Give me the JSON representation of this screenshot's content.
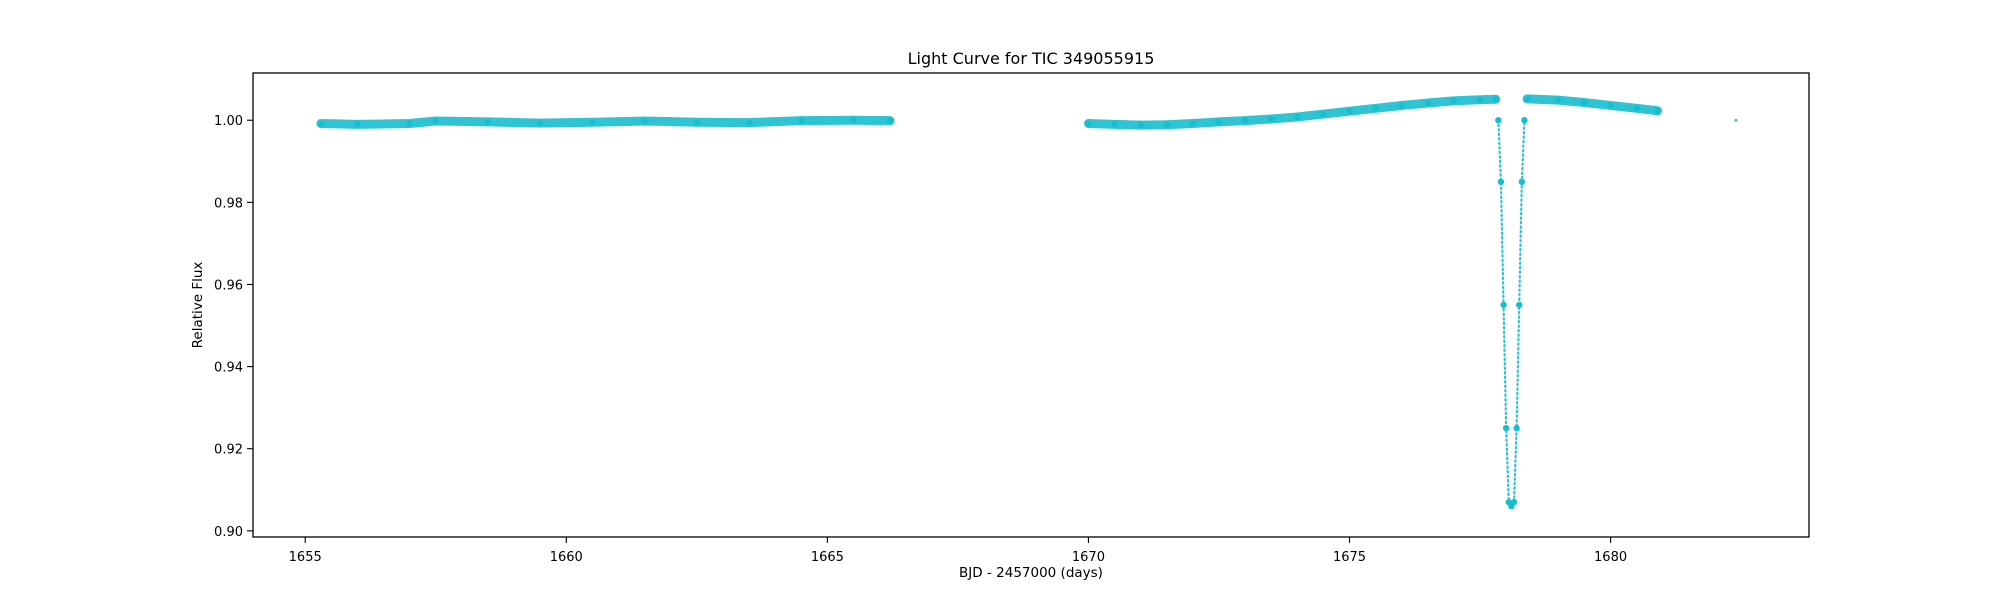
{
  "chart_data": {
    "type": "scatter",
    "title": "Light Curve for TIC 349055915",
    "xlabel": "BJD - 2457000 (days)",
    "ylabel": "Relative Flux",
    "xlim": [
      1654.0,
      1683.8
    ],
    "ylim": [
      0.8985,
      1.0115
    ],
    "x_ticks": [
      1655,
      1660,
      1665,
      1670,
      1675,
      1680
    ],
    "x_tick_labels": [
      "1655",
      "1660",
      "1665",
      "1670",
      "1675",
      "1680"
    ],
    "y_ticks": [
      0.9,
      0.92,
      0.94,
      0.96,
      0.98,
      1.0
    ],
    "y_tick_labels": [
      "0.90",
      "0.92",
      "0.94",
      "0.96",
      "0.98",
      "1.00"
    ],
    "grid": false,
    "legend": "none",
    "marker": "small dots",
    "series": [
      {
        "color": "#17becf",
        "segments": [
          {
            "x": [
              1655.3,
              1656.0,
              1657.0,
              1657.5,
              1658.5,
              1659.5,
              1660.5,
              1661.5,
              1662.5,
              1663.5,
              1664.5,
              1665.5,
              1666.2
            ],
            "y": [
              0.9992,
              0.999,
              0.9992,
              0.9998,
              0.9996,
              0.9993,
              0.9995,
              0.9998,
              0.9995,
              0.9994,
              0.9999,
              1.0,
              0.9999
            ]
          },
          {
            "x": [
              1670.0,
              1670.5,
              1671.0,
              1671.5,
              1672.0,
              1672.5,
              1673.0,
              1673.5,
              1674.0,
              1674.5,
              1675.0,
              1675.5,
              1676.0,
              1676.5,
              1677.0,
              1677.5,
              1677.8
            ],
            "y": [
              0.9992,
              0.999,
              0.9988,
              0.9989,
              0.9992,
              0.9996,
              0.9999,
              1.0003,
              1.0008,
              1.0015,
              1.0022,
              1.0029,
              1.0036,
              1.0042,
              1.0047,
              1.005,
              1.0051
            ]
          },
          {
            "x": [
              1677.85,
              1677.9,
              1677.95,
              1678.0,
              1678.05,
              1678.1,
              1678.15,
              1678.2,
              1678.25,
              1678.3,
              1678.35
            ],
            "y": [
              1.0,
              0.985,
              0.955,
              0.925,
              0.907,
              0.906,
              0.907,
              0.925,
              0.955,
              0.985,
              1.0
            ]
          },
          {
            "x": [
              1678.4,
              1679.0,
              1679.5,
              1680.0,
              1680.5,
              1680.9
            ],
            "y": [
              1.0052,
              1.0049,
              1.0043,
              1.0036,
              1.0029,
              1.0023
            ]
          },
          {
            "x": [
              1682.4
            ],
            "y": [
              1.0
            ]
          }
        ]
      }
    ]
  }
}
